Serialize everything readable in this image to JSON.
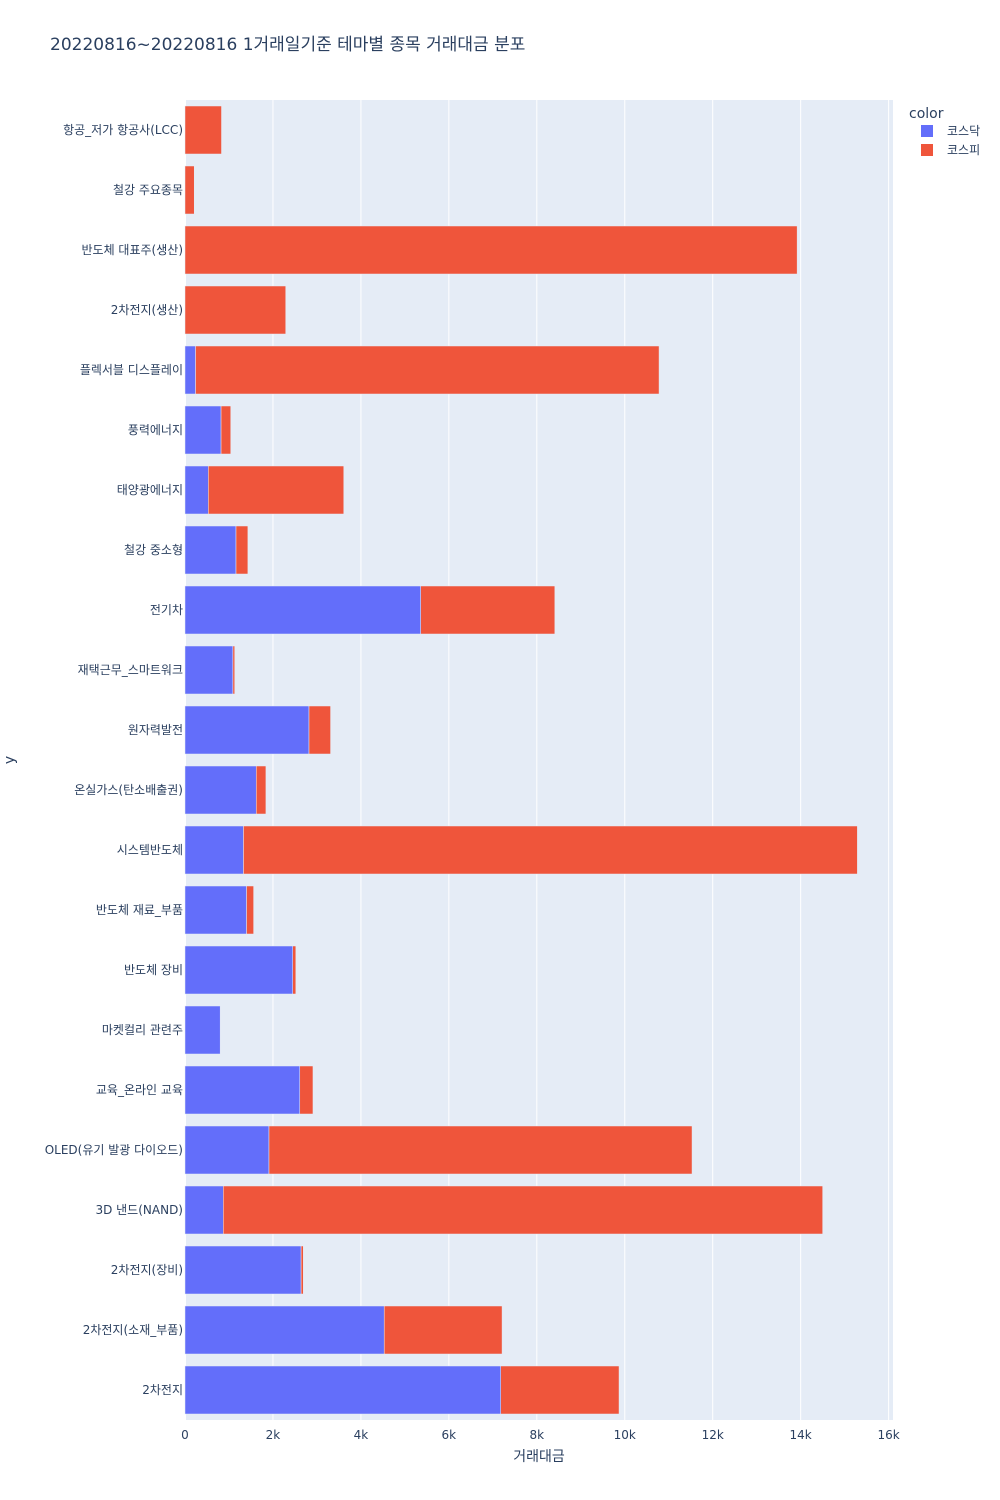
{
  "chart_data": {
    "type": "bar",
    "orientation": "horizontal",
    "barmode": "stack",
    "title": "20220816~20220816 1거래일기준 테마별 종목 거래대금 분포",
    "xlabel": "거래대금",
    "ylabel": "y",
    "xlim": [
      0,
      16100
    ],
    "x_ticks": [
      0,
      2000,
      4000,
      6000,
      8000,
      10000,
      12000,
      14000,
      16000
    ],
    "x_tick_labels": [
      "0",
      "2k",
      "4k",
      "6k",
      "8k",
      "10k",
      "12k",
      "14k",
      "16k"
    ],
    "legend_title": "color",
    "legend_position": "top-right",
    "categories": [
      "2차전지",
      "2차전지(소재_부품)",
      "2차전지(장비)",
      "3D 낸드(NAND)",
      "OLED(유기 발광 다이오드)",
      "교육_온라인 교육",
      "마켓컬리 관련주",
      "반도체 장비",
      "반도체 재료_부품",
      "시스템반도체",
      "온실가스(탄소배출권)",
      "원자력발전",
      "재택근무_스마트워크",
      "전기차",
      "철강 중소형",
      "태양광에너지",
      "풍력에너지",
      "플렉서블 디스플레이",
      "2차전지(생산)",
      "반도체 대표주(생산)",
      "철강 주요종목",
      "항공_저가 항공사(LCC)"
    ],
    "series": [
      {
        "name": "코스닥",
        "color": "#636efa",
        "values": [
          7180,
          4530,
          2640,
          870,
          1910,
          2610,
          800,
          2450,
          1400,
          1330,
          1620,
          2820,
          1090,
          5360,
          1160,
          530,
          820,
          240,
          0,
          0,
          0,
          0
        ]
      },
      {
        "name": "코스피",
        "color": "#ef553b",
        "values": [
          2690,
          2680,
          50,
          13630,
          9620,
          300,
          0,
          70,
          160,
          13960,
          220,
          490,
          40,
          3050,
          270,
          3080,
          220,
          10540,
          2290,
          13920,
          210,
          830
        ]
      }
    ]
  }
}
